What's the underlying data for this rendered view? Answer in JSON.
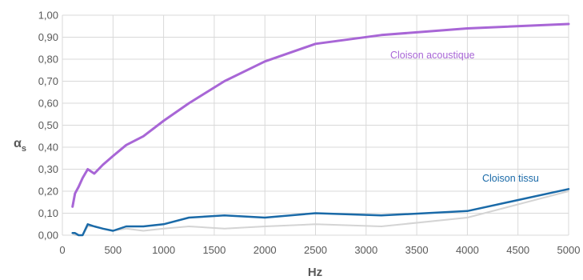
{
  "chart_data": {
    "type": "line",
    "xlabel": "Hz",
    "ylabel_main": "α",
    "ylabel_sub": "s",
    "xlim": [
      0,
      5000
    ],
    "ylim": [
      0,
      1
    ],
    "grid": true,
    "x_ticks": [
      "0",
      "500",
      "1000",
      "1500",
      "2000",
      "2500",
      "3000",
      "3500",
      "4000",
      "4500",
      "5000"
    ],
    "y_ticks": [
      "0,00",
      "0,10",
      "0,20",
      "0,30",
      "0,40",
      "0,50",
      "0,60",
      "0,70",
      "0,80",
      "0,90",
      "1,00"
    ],
    "series": [
      {
        "name": "Cloison acoustique",
        "color": "#a866d6",
        "label_color": "#a866d6",
        "x": [
          100,
          125,
          160,
          200,
          250,
          315,
          400,
          500,
          630,
          800,
          1000,
          1250,
          1600,
          2000,
          2500,
          3150,
          4000,
          5000
        ],
        "y": [
          0.13,
          0.19,
          0.22,
          0.26,
          0.3,
          0.28,
          0.32,
          0.36,
          0.41,
          0.45,
          0.52,
          0.6,
          0.7,
          0.79,
          0.87,
          0.91,
          0.94,
          0.96
        ]
      },
      {
        "name": "Cloison tissu",
        "color": "#1a6aa8",
        "label_color": "#1a6aa8",
        "x": [
          100,
          125,
          160,
          200,
          250,
          315,
          400,
          500,
          630,
          800,
          1000,
          1250,
          1600,
          2000,
          2500,
          3150,
          4000,
          5000
        ],
        "y": [
          0.01,
          0.01,
          0.0,
          0.0,
          0.05,
          0.04,
          0.03,
          0.02,
          0.04,
          0.04,
          0.05,
          0.08,
          0.09,
          0.08,
          0.1,
          0.09,
          0.11,
          0.21
        ]
      },
      {
        "color": "#d4d4d4",
        "x": [
          100,
          125,
          160,
          200,
          250,
          315,
          400,
          500,
          630,
          800,
          1000,
          1250,
          1600,
          2000,
          2500,
          3150,
          4000,
          5000
        ],
        "y": [
          0.01,
          0.0,
          0.0,
          0.0,
          0.04,
          0.04,
          0.03,
          0.02,
          0.03,
          0.02,
          0.03,
          0.04,
          0.03,
          0.04,
          0.05,
          0.04,
          0.08,
          0.2
        ]
      }
    ]
  }
}
